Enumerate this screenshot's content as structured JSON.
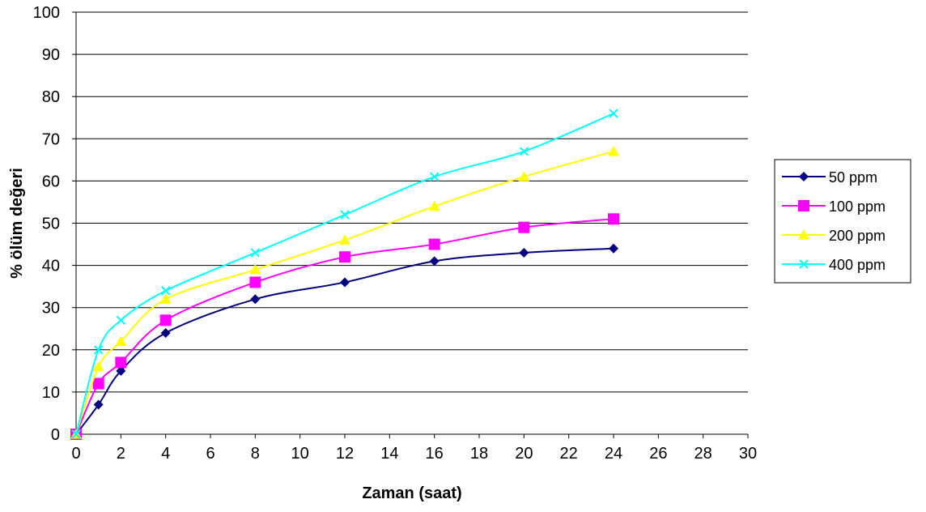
{
  "chart_data": {
    "type": "line",
    "title": "",
    "xlabel": "Zaman (saat)",
    "ylabel": "% ölüm değeri",
    "xlim": [
      0,
      30
    ],
    "ylim": [
      0,
      100
    ],
    "xticks": [
      0,
      2,
      4,
      6,
      8,
      10,
      12,
      14,
      16,
      18,
      20,
      22,
      24,
      26,
      28,
      30
    ],
    "yticks": [
      0,
      10,
      20,
      30,
      40,
      50,
      60,
      70,
      80,
      90,
      100
    ],
    "grid": "horizontal",
    "legend_position": "right",
    "x": [
      0,
      1,
      2,
      4,
      8,
      12,
      16,
      20,
      24
    ],
    "series": [
      {
        "name": "50 ppm",
        "color": "#000080",
        "marker": "diamond",
        "values": [
          0,
          7,
          15,
          24,
          32,
          36,
          41,
          43,
          44
        ]
      },
      {
        "name": "100 ppm",
        "color": "#FF00FF",
        "marker": "square",
        "values": [
          0,
          12,
          17,
          27,
          36,
          42,
          45,
          49,
          51
        ]
      },
      {
        "name": "200 ppm",
        "color": "#FFFF00",
        "marker": "triangle",
        "values": [
          0,
          16,
          22,
          32,
          39,
          46,
          54,
          61,
          67
        ]
      },
      {
        "name": "400 ppm",
        "color": "#00FFFF",
        "marker": "x",
        "values": [
          0,
          20,
          27,
          34,
          43,
          52,
          61,
          67,
          76
        ]
      }
    ]
  }
}
